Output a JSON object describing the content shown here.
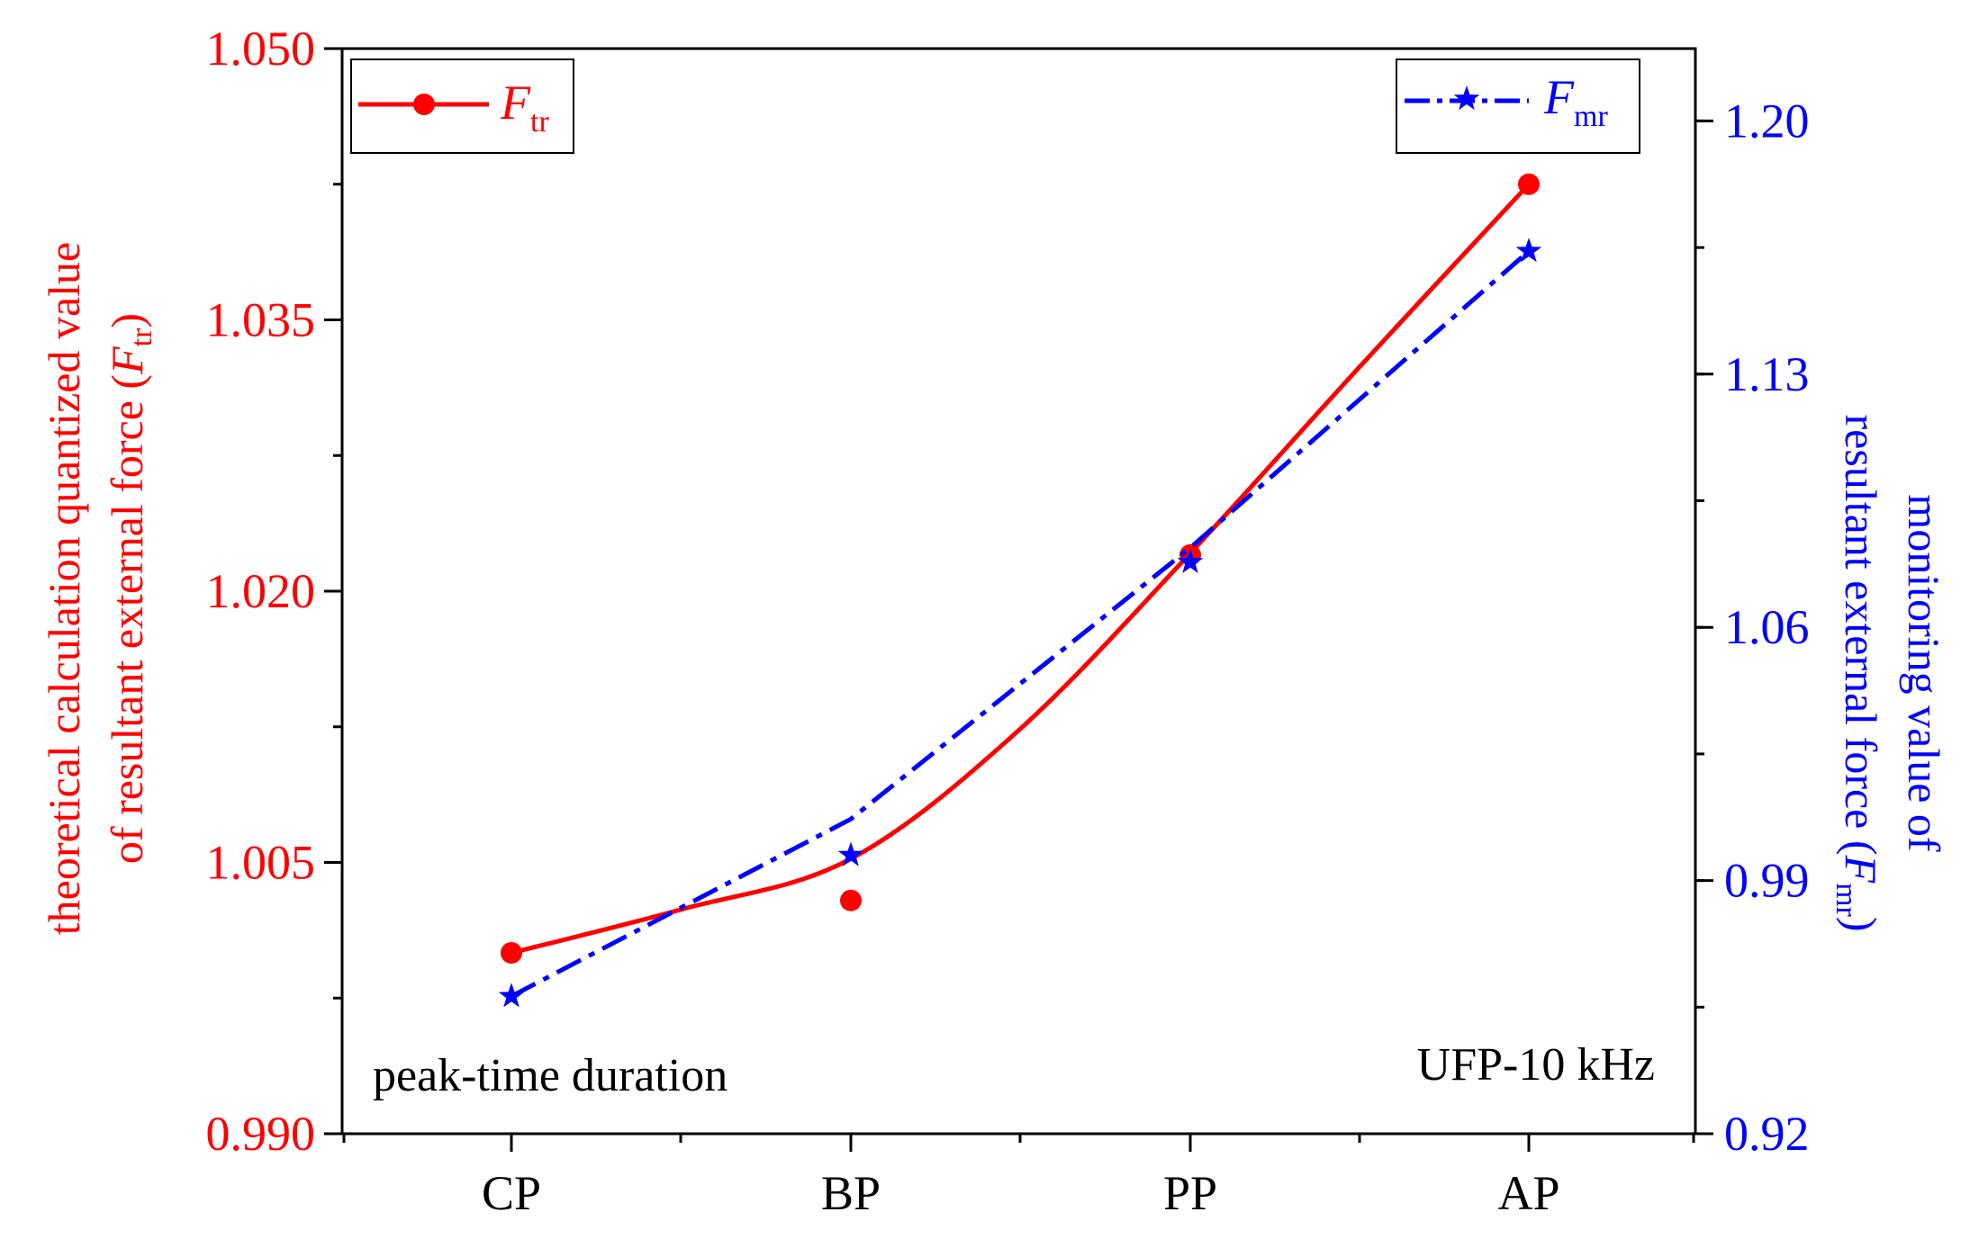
{
  "chart_data": {
    "type": "line",
    "categories": [
      "CP",
      "BP",
      "PP",
      "AP"
    ],
    "left_axis": {
      "label_line1": "theoretical calculation quantized value",
      "label_line2_prefix": "of resultant external force (",
      "label_symbol": "F",
      "label_subscript": "tr",
      "label_suffix": ")",
      "range": [
        0.99,
        1.05
      ],
      "ticks": [
        "0.990",
        "1.005",
        "1.020",
        "1.035",
        "1.050"
      ],
      "tick_values": [
        0.99,
        1.005,
        1.02,
        1.035,
        1.05
      ],
      "minor_step": 0.0075,
      "color": "#ff0000"
    },
    "right_axis": {
      "label_line1": "monitoring value of",
      "label_line2_prefix": "resultant external force (",
      "label_symbol": "F",
      "label_subscript": "mr",
      "label_suffix": ")",
      "range": [
        0.92,
        1.22
      ],
      "ticks": [
        "0.92",
        "0.99",
        "1.06",
        "1.13",
        "1.20"
      ],
      "tick_values": [
        0.92,
        0.99,
        1.06,
        1.13,
        1.2
      ],
      "minor_step": 0.035,
      "color": "#0000ff"
    },
    "series": [
      {
        "name": "F_tr",
        "legend_symbol": "F",
        "legend_subscript": "tr",
        "axis": "left",
        "color": "#ff0000",
        "marker": "circle",
        "line_style": "solid",
        "values": [
          1.0,
          1.0029,
          1.022,
          1.0425
        ],
        "fit_curve": [
          [
            0,
            1.0
          ],
          [
            0.5,
            1.0024
          ],
          [
            1,
            1.0052
          ],
          [
            1.5,
            1.0124
          ],
          [
            2,
            1.0221
          ],
          [
            2.5,
            1.0324
          ],
          [
            3,
            1.0425
          ]
        ]
      },
      {
        "name": "F_mr",
        "legend_symbol": "F",
        "legend_subscript": "mr",
        "axis": "right",
        "color": "#0000ff",
        "marker": "star",
        "line_style": "dash-dot",
        "values": [
          0.958,
          0.997,
          1.078,
          1.164
        ],
        "fit_curve": [
          [
            0,
            0.958
          ],
          [
            1,
            1.007
          ],
          [
            2,
            1.082
          ],
          [
            3,
            1.164
          ]
        ]
      }
    ],
    "annotations": {
      "bottom_left": "peak-time duration",
      "bottom_right": "UFP-10 kHz"
    },
    "legend": [
      "top-left",
      "top-right"
    ],
    "grid": false
  }
}
